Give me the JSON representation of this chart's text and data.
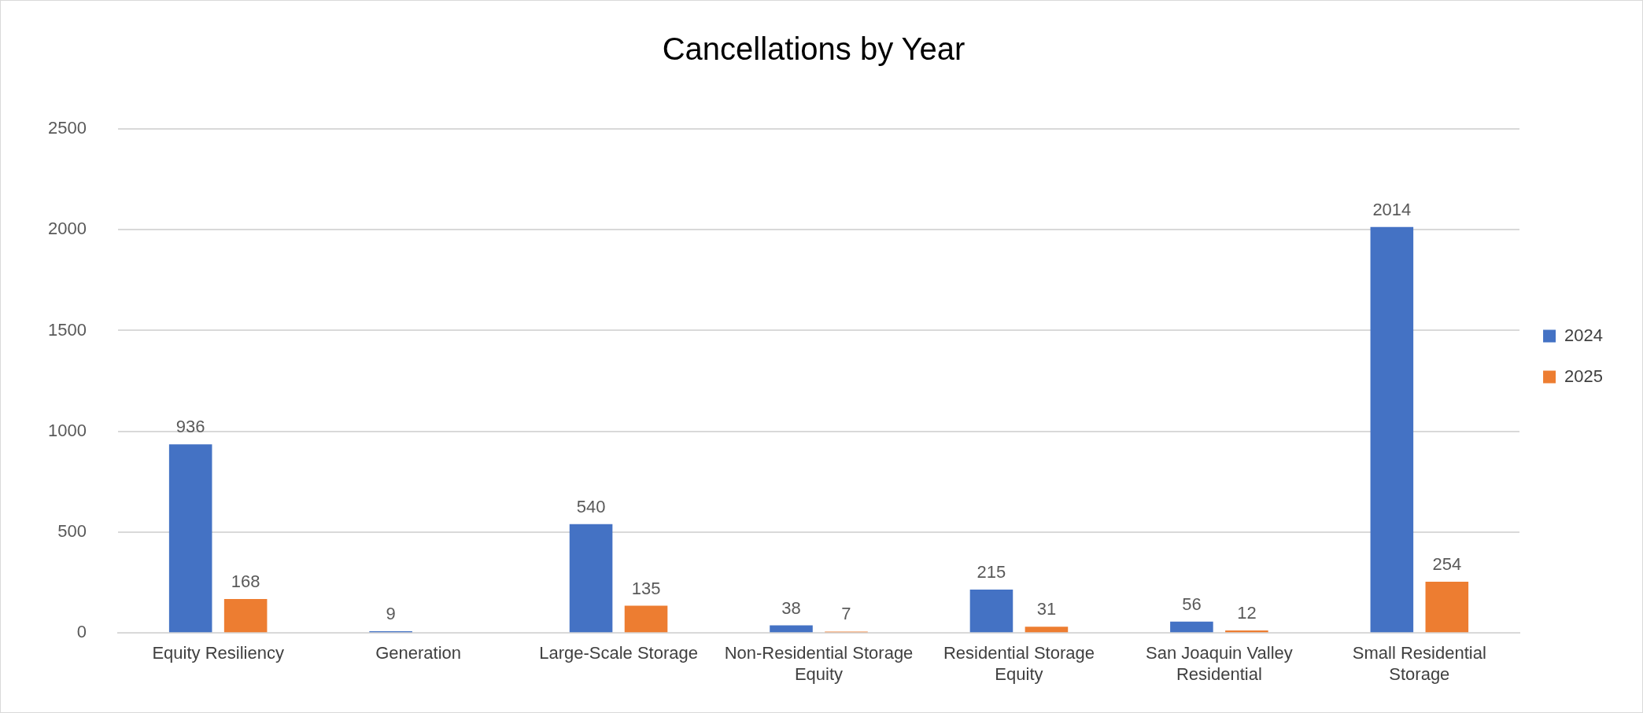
{
  "chart_data": {
    "type": "bar",
    "title": "Cancellations by Year",
    "categories": [
      "Equity Resiliency",
      "Generation",
      "Large-Scale Storage",
      "Non-Residential Storage Equity",
      "Residential Storage Equity",
      "San Joaquin Valley Residential",
      "Small Residential Storage"
    ],
    "series": [
      {
        "name": "2024",
        "color": "#4472c4",
        "values": [
          936,
          9,
          540,
          38,
          215,
          56,
          2014
        ]
      },
      {
        "name": "2025",
        "color": "#ed7d31",
        "values": [
          168,
          null,
          135,
          7,
          31,
          12,
          254
        ]
      }
    ],
    "ylim": [
      0,
      2500
    ],
    "yticks": [
      0,
      500,
      1000,
      1500,
      2000,
      2500
    ],
    "grid": "y",
    "legend": "right",
    "data_labels": true
  }
}
